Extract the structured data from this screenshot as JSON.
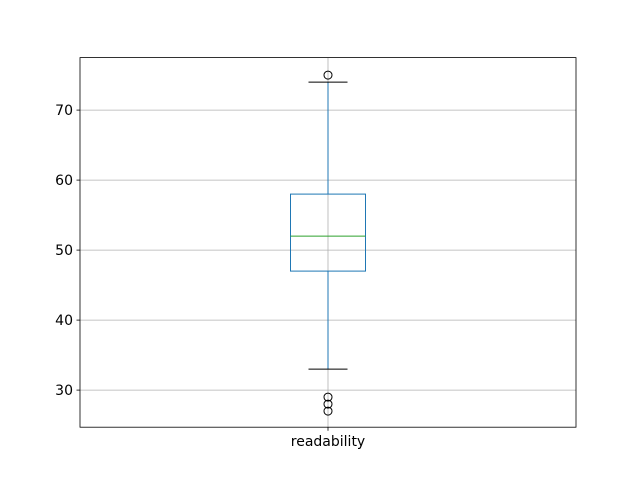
{
  "figure": {
    "background": "#ffffff"
  },
  "chart_data": {
    "type": "boxplot",
    "title": "",
    "xlabel": "",
    "ylabel": "",
    "categories": [
      "readability"
    ],
    "series": [
      {
        "name": "readability",
        "q1": 47,
        "median": 52,
        "q3": 58,
        "whisker_low": 33,
        "whisker_high": 74,
        "outliers": [
          75,
          29,
          28,
          27
        ]
      }
    ],
    "yticks": [
      30,
      40,
      50,
      60,
      70
    ],
    "ylim": [
      24.7,
      77.5
    ],
    "grid": true,
    "legend_position": "none",
    "colors": {
      "box": "#1f77b4",
      "whisker": "#1f77b4",
      "median": "#2ca02c",
      "cap": "#000000",
      "flier": "#000000",
      "grid": "#b0b0b0",
      "spine": "#000000",
      "text": "#000000"
    }
  }
}
